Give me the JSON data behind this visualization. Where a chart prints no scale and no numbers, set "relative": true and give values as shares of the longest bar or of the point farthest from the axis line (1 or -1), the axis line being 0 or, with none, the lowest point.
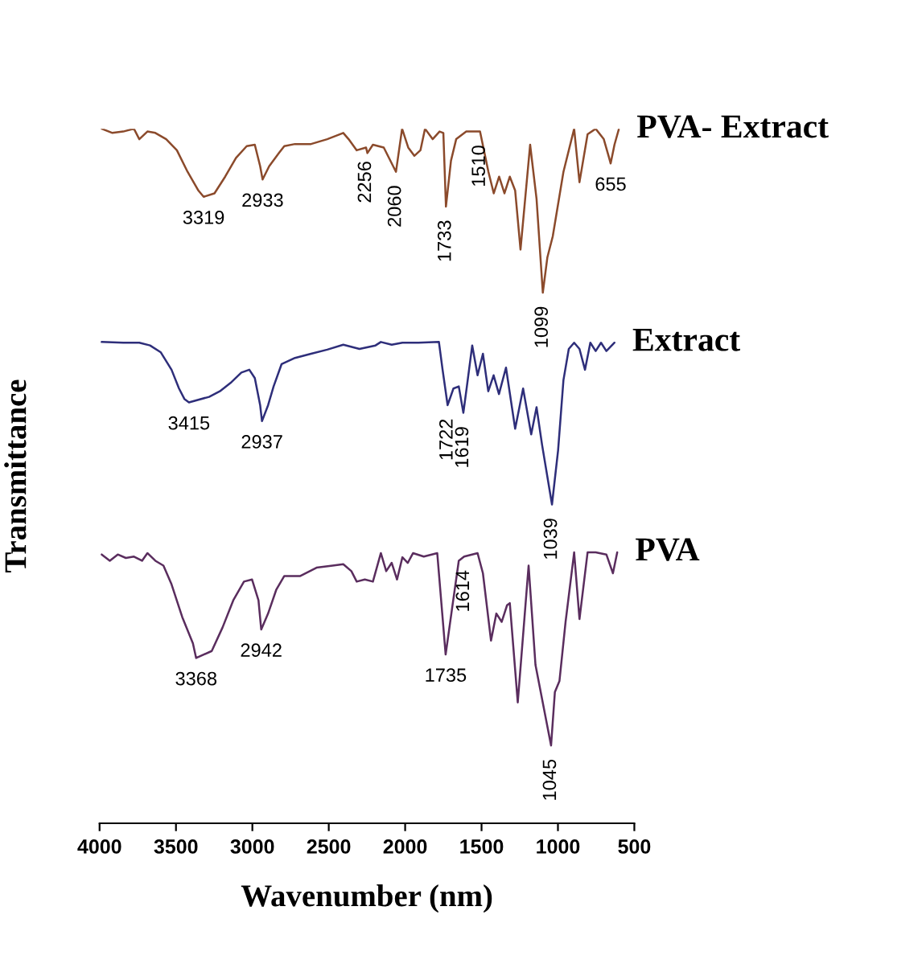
{
  "chart_data": {
    "type": "line",
    "relative": true,
    "xlabel": "Wavenumber (nm)",
    "ylabel": "Transmittance",
    "xlim": [
      4000,
      500
    ],
    "xticks": [
      4000,
      3500,
      3000,
      2500,
      2000,
      1500,
      1000,
      500
    ],
    "grid": false,
    "legend": false,
    "marker": "none",
    "line_style": "solid",
    "series": [
      {
        "name": "PVA- Extract",
        "color": "#8b4a2b",
        "x": [
          3986,
          3916,
          3845,
          3775,
          3740,
          3687,
          3635,
          3564,
          3494,
          3424,
          3353,
          3319,
          3248,
          3178,
          3107,
          3037,
          2984,
          2949,
          2933,
          2890,
          2826,
          2791,
          2721,
          2616,
          2510,
          2405,
          2370,
          2317,
          2256,
          2247,
          2211,
          2140,
          2060,
          2020,
          1980,
          1940,
          1900,
          1870,
          1820,
          1775,
          1750,
          1733,
          1700,
          1666,
          1600,
          1510,
          1455,
          1420,
          1385,
          1350,
          1315,
          1280,
          1245,
          1182,
          1140,
          1099,
          1069,
          1034,
          964,
          894,
          859,
          806,
          753,
          700,
          665,
          655,
          630,
          602
        ],
        "values": [
          1.0,
          0.994,
          0.996,
          1.0,
          0.985,
          0.996,
          0.994,
          0.985,
          0.969,
          0.938,
          0.911,
          0.902,
          0.907,
          0.931,
          0.958,
          0.975,
          0.977,
          0.946,
          0.927,
          0.946,
          0.965,
          0.975,
          0.978,
          0.978,
          0.985,
          0.994,
          0.985,
          0.969,
          0.973,
          0.965,
          0.977,
          0.973,
          0.938,
          1.0,
          0.973,
          0.961,
          0.969,
          1.0,
          0.985,
          0.996,
          0.994,
          0.888,
          0.954,
          0.985,
          0.996,
          0.996,
          0.938,
          0.907,
          0.931,
          0.907,
          0.931,
          0.911,
          0.826,
          0.977,
          0.899,
          0.764,
          0.815,
          0.845,
          0.938,
          1.0,
          0.923,
          0.992,
          1.0,
          0.985,
          0.958,
          0.95,
          0.977,
          0.999
        ]
      },
      {
        "name": "Extract",
        "color": "#2e2e7a",
        "x": [
          3986,
          3845,
          3740,
          3670,
          3599,
          3529,
          3480,
          3445,
          3415,
          3283,
          3213,
          3143,
          3072,
          3020,
          2984,
          2949,
          2937,
          2897,
          2861,
          2809,
          2721,
          2616,
          2510,
          2405,
          2299,
          2194,
          2159,
          2088,
          2018,
          1913,
          1779,
          1755,
          1722,
          1684,
          1649,
          1619,
          1596,
          1561,
          1526,
          1491,
          1456,
          1421,
          1386,
          1340,
          1280,
          1228,
          1175,
          1140,
          1104,
          1039,
          999,
          964,
          929,
          894,
          859,
          823,
          788,
          753,
          718,
          683,
          630
        ],
        "values": [
          0.693,
          0.692,
          0.692,
          0.688,
          0.678,
          0.653,
          0.626,
          0.611,
          0.606,
          0.614,
          0.622,
          0.634,
          0.649,
          0.653,
          0.641,
          0.602,
          0.579,
          0.602,
          0.629,
          0.661,
          0.67,
          0.676,
          0.682,
          0.689,
          0.683,
          0.688,
          0.693,
          0.689,
          0.692,
          0.692,
          0.693,
          0.653,
          0.602,
          0.626,
          0.629,
          0.591,
          0.629,
          0.688,
          0.645,
          0.676,
          0.622,
          0.645,
          0.618,
          0.656,
          0.568,
          0.626,
          0.56,
          0.599,
          0.545,
          0.459,
          0.537,
          0.638,
          0.683,
          0.692,
          0.683,
          0.653,
          0.692,
          0.68,
          0.692,
          0.68,
          0.692
        ]
      },
      {
        "name": "PVA",
        "color": "#5a2d5e",
        "x": [
          3986,
          3933,
          3881,
          3828,
          3775,
          3722,
          3687,
          3635,
          3582,
          3529,
          3459,
          3389,
          3368,
          3266,
          3195,
          3125,
          3055,
          3002,
          2960,
          2942,
          2897,
          2844,
          2791,
          2686,
          2580,
          2475,
          2405,
          2352,
          2317,
          2264,
          2211,
          2159,
          2124,
          2088,
          2053,
          2018,
          1983,
          1948,
          1878,
          1790,
          1735,
          1695,
          1649,
          1614,
          1526,
          1491,
          1438,
          1403,
          1368,
          1333,
          1315,
          1263,
          1192,
          1147,
          1045,
          1020,
          990,
          950,
          894,
          859,
          806,
          753,
          683,
          640,
          612
        ],
        "values": [
          0.387,
          0.378,
          0.387,
          0.382,
          0.384,
          0.378,
          0.389,
          0.378,
          0.371,
          0.344,
          0.297,
          0.259,
          0.238,
          0.248,
          0.282,
          0.321,
          0.348,
          0.351,
          0.321,
          0.279,
          0.302,
          0.336,
          0.356,
          0.356,
          0.368,
          0.371,
          0.373,
          0.363,
          0.348,
          0.351,
          0.348,
          0.389,
          0.363,
          0.375,
          0.351,
          0.383,
          0.375,
          0.389,
          0.384,
          0.389,
          0.243,
          0.306,
          0.378,
          0.384,
          0.389,
          0.36,
          0.263,
          0.302,
          0.29,
          0.314,
          0.317,
          0.174,
          0.371,
          0.228,
          0.112,
          0.189,
          0.205,
          0.29,
          0.39,
          0.294,
          0.39,
          0.39,
          0.387,
          0.36,
          0.39
        ]
      }
    ],
    "annotations": [
      {
        "text": "3319",
        "x": 3319,
        "y": 0.902
      },
      {
        "text": "2933",
        "x": 2933,
        "y": 0.927
      },
      {
        "text": "2256",
        "x": 2256,
        "y": 0.973
      },
      {
        "text": "2060",
        "x": 2060,
        "y": 0.938
      },
      {
        "text": "1733",
        "x": 1733,
        "y": 0.888
      },
      {
        "text": "1510",
        "x": 1510,
        "y": 0.996
      },
      {
        "text": "1099",
        "x": 1099,
        "y": 0.764
      },
      {
        "text": "655",
        "x": 655,
        "y": 0.95
      },
      {
        "text": "3415",
        "x": 3415,
        "y": 0.606
      },
      {
        "text": "2937",
        "x": 2937,
        "y": 0.579
      },
      {
        "text": "1722",
        "x": 1722,
        "y": 0.602
      },
      {
        "text": "1619",
        "x": 1619,
        "y": 0.591
      },
      {
        "text": "1039",
        "x": 1039,
        "y": 0.459
      },
      {
        "text": "3368",
        "x": 3368,
        "y": 0.238
      },
      {
        "text": "2942",
        "x": 2942,
        "y": 0.279
      },
      {
        "text": "1735",
        "x": 1735,
        "y": 0.243
      },
      {
        "text": "1614",
        "x": 1614,
        "y": 0.384
      },
      {
        "text": "1045",
        "x": 1045,
        "y": 0.112
      }
    ]
  }
}
